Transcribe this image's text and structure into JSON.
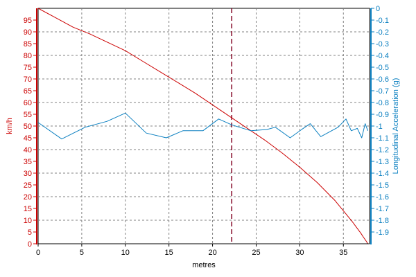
{
  "chart_data": {
    "type": "line",
    "xlabel": "metres",
    "xlim": [
      0,
      38
    ],
    "x_ticks": [
      0,
      5,
      10,
      15,
      20,
      25,
      30,
      35
    ],
    "grid": true,
    "cursor_x": 22.2,
    "left_axis": {
      "label": "km/h",
      "color": "#cc0000",
      "ylim": [
        0,
        100
      ],
      "ticks": [
        0,
        5,
        10,
        15,
        20,
        25,
        30,
        35,
        40,
        45,
        50,
        55,
        60,
        65,
        70,
        75,
        80,
        85,
        90,
        95
      ]
    },
    "right_axis": {
      "label": "Longitudinal Acceleration (g)",
      "color": "#0a7fc0",
      "ylim": [
        -2.0,
        0
      ],
      "ticks": [
        0,
        -0.1,
        -0.2,
        -0.3,
        -0.4,
        -0.5,
        -0.6,
        -0.7,
        -0.8,
        -0.9,
        -1,
        -1.1,
        -1.2,
        -1.3,
        -1.4,
        -1.5,
        -1.6,
        -1.7,
        -1.8,
        -1.9
      ]
    },
    "series": [
      {
        "axis": "left",
        "color": "#cc0000",
        "x": [
          0,
          2,
          4,
          6,
          8,
          10,
          12,
          14,
          16,
          18,
          20,
          22,
          24,
          26,
          28,
          30,
          32,
          34,
          35,
          36,
          36.5,
          37,
          37.3,
          37.6,
          37.8
        ],
        "values": [
          100,
          96,
          92,
          89,
          85.5,
          82,
          77.5,
          73,
          68.5,
          64,
          59,
          54,
          49,
          44,
          38.5,
          32.5,
          26,
          18.5,
          14,
          9.5,
          7,
          4.5,
          2.8,
          1.2,
          0
        ]
      },
      {
        "axis": "right",
        "color": "#0a7fc0",
        "x": [
          0,
          2.7,
          5.4,
          7.9,
          10,
          12.4,
          14.7,
          16.6,
          18.9,
          20.7,
          22.2,
          24.4,
          26.2,
          27.2,
          28.9,
          30.2,
          31.2,
          32.4,
          34.4,
          35.3,
          35.9,
          36.6,
          37.1,
          37.5,
          37.8
        ],
        "values": [
          -0.97,
          -1.11,
          -1.01,
          -0.96,
          -0.89,
          -1.06,
          -1.1,
          -1.04,
          -1.04,
          -0.94,
          -0.99,
          -1.04,
          -1.03,
          -1.01,
          -1.1,
          -1.03,
          -0.98,
          -1.09,
          -1.01,
          -0.94,
          -1.04,
          -1.02,
          -1.1,
          -0.98,
          -1.04
        ]
      }
    ]
  }
}
